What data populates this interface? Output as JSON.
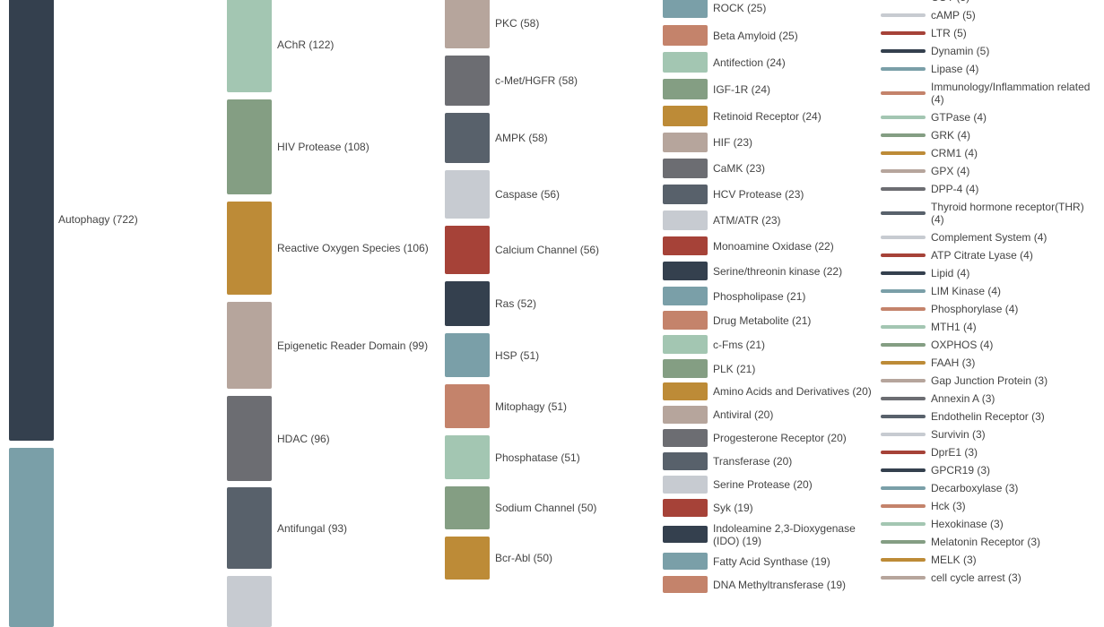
{
  "palette": [
    "#34404e",
    "#7a9fa8",
    "#c4836b",
    "#a3c6b2",
    "#849e83",
    "#bd8b37",
    "#b6a59c",
    "#6c6d72",
    "#58616b",
    "#c7cbd1",
    "#a64238"
  ],
  "chart_data": {
    "type": "bar",
    "title": "",
    "columns": [
      {
        "kind": "bars",
        "items": [
          {
            "label": "Autophagy",
            "value": 722,
            "color": "#34404e"
          },
          {
            "label": "",
            "value": null,
            "color": "#7a9fa8"
          }
        ]
      },
      {
        "kind": "bars",
        "items": [
          {
            "label": "AChR",
            "value": 122,
            "color": "#a3c6b2"
          },
          {
            "label": "HIV Protease",
            "value": 108,
            "color": "#849e83"
          },
          {
            "label": "Reactive Oxygen Species",
            "value": 106,
            "color": "#bd8b37"
          },
          {
            "label": "Epigenetic Reader Domain",
            "value": 99,
            "color": "#b6a59c"
          },
          {
            "label": "HDAC",
            "value": 96,
            "color": "#6c6d72"
          },
          {
            "label": "Antifungal",
            "value": 93,
            "color": "#58616b"
          },
          {
            "label": "",
            "value": null,
            "color": "#c7cbd1"
          }
        ]
      },
      {
        "kind": "bars",
        "items": [
          {
            "label": "PKC",
            "value": 58,
            "color": "#b6a59c"
          },
          {
            "label": "c-Met/HGFR",
            "value": 58,
            "color": "#6c6d72"
          },
          {
            "label": "AMPK",
            "value": 58,
            "color": "#58616b"
          },
          {
            "label": "Caspase",
            "value": 56,
            "color": "#c7cbd1"
          },
          {
            "label": "Calcium Channel",
            "value": 56,
            "color": "#a64238"
          },
          {
            "label": "Ras",
            "value": 52,
            "color": "#34404e"
          },
          {
            "label": "HSP",
            "value": 51,
            "color": "#7a9fa8"
          },
          {
            "label": "Mitophagy",
            "value": 51,
            "color": "#c4836b"
          },
          {
            "label": "Phosphatase",
            "value": 51,
            "color": "#a3c6b2"
          },
          {
            "label": "Sodium Channel",
            "value": 50,
            "color": "#849e83"
          },
          {
            "label": "Bcr-Abl",
            "value": 50,
            "color": "#bd8b37"
          }
        ]
      },
      {
        "kind": "bars",
        "items": [
          {
            "label": "ROCK",
            "value": 25,
            "color": "#7a9fa8"
          },
          {
            "label": "Beta Amyloid",
            "value": 25,
            "color": "#c4836b"
          },
          {
            "label": "Antifection",
            "value": 24,
            "color": "#a3c6b2"
          },
          {
            "label": "IGF-1R",
            "value": 24,
            "color": "#849e83"
          },
          {
            "label": "Retinoid Receptor",
            "value": 24,
            "color": "#bd8b37"
          },
          {
            "label": "HIF",
            "value": 23,
            "color": "#b6a59c"
          },
          {
            "label": "CaMK",
            "value": 23,
            "color": "#6c6d72"
          },
          {
            "label": "HCV Protease",
            "value": 23,
            "color": "#58616b"
          },
          {
            "label": "ATM/ATR",
            "value": 23,
            "color": "#c7cbd1"
          },
          {
            "label": "Monoamine Oxidase",
            "value": 22,
            "color": "#a64238"
          },
          {
            "label": "Serine/threonin kinase",
            "value": 22,
            "color": "#34404e"
          },
          {
            "label": "Phospholipase",
            "value": 21,
            "color": "#7a9fa8"
          },
          {
            "label": "Drug Metabolite",
            "value": 21,
            "color": "#c4836b"
          },
          {
            "label": "c-Fms",
            "value": 21,
            "color": "#a3c6b2"
          },
          {
            "label": "PLK",
            "value": 21,
            "color": "#849e83"
          },
          {
            "label": "Amino Acids and Derivatives",
            "value": 20,
            "color": "#bd8b37"
          },
          {
            "label": "Antiviral",
            "value": 20,
            "color": "#b6a59c"
          },
          {
            "label": "Progesterone Receptor",
            "value": 20,
            "color": "#6c6d72"
          },
          {
            "label": "Transferase",
            "value": 20,
            "color": "#58616b"
          },
          {
            "label": "Serine Protease",
            "value": 20,
            "color": "#c7cbd1"
          },
          {
            "label": "Syk",
            "value": 19,
            "color": "#a64238"
          },
          {
            "label": "Indoleamine 2,3-Dioxygenase (IDO)",
            "value": 19,
            "color": "#34404e"
          },
          {
            "label": "Fatty Acid Synthase",
            "value": 19,
            "color": "#7a9fa8"
          },
          {
            "label": "DNA Methyltransferase",
            "value": 19,
            "color": "#c4836b"
          }
        ]
      },
      {
        "kind": "lines",
        "items": [
          {
            "label": "COT",
            "value": 5,
            "color": "#34404e"
          },
          {
            "label": "cAMP",
            "value": 5,
            "color": "#c7cbd1"
          },
          {
            "label": "LTR",
            "value": 5,
            "color": "#a64238"
          },
          {
            "label": "Dynamin",
            "value": 5,
            "color": "#34404e"
          },
          {
            "label": "Lipase",
            "value": 4,
            "color": "#7a9fa8"
          },
          {
            "label": "Immunology/Inflammation related",
            "value": 4,
            "color": "#c4836b"
          },
          {
            "label": "GTPase",
            "value": 4,
            "color": "#a3c6b2"
          },
          {
            "label": "GRK",
            "value": 4,
            "color": "#849e83"
          },
          {
            "label": "CRM1",
            "value": 4,
            "color": "#bd8b37"
          },
          {
            "label": "GPX",
            "value": 4,
            "color": "#b6a59c"
          },
          {
            "label": "DPP-4",
            "value": 4,
            "color": "#6c6d72"
          },
          {
            "label": "Thyroid hormone receptor(THR)",
            "value": 4,
            "color": "#58616b"
          },
          {
            "label": "Complement System",
            "value": 4,
            "color": "#c7cbd1"
          },
          {
            "label": "ATP Citrate Lyase",
            "value": 4,
            "color": "#a64238"
          },
          {
            "label": "Lipid",
            "value": 4,
            "color": "#34404e"
          },
          {
            "label": "LIM Kinase",
            "value": 4,
            "color": "#7a9fa8"
          },
          {
            "label": "Phosphorylase",
            "value": 4,
            "color": "#c4836b"
          },
          {
            "label": "MTH1",
            "value": 4,
            "color": "#a3c6b2"
          },
          {
            "label": "OXPHOS",
            "value": 4,
            "color": "#849e83"
          },
          {
            "label": "FAAH",
            "value": 3,
            "color": "#bd8b37"
          },
          {
            "label": "Gap Junction Protein",
            "value": 3,
            "color": "#b6a59c"
          },
          {
            "label": "Annexin A",
            "value": 3,
            "color": "#6c6d72"
          },
          {
            "label": "Endothelin Receptor",
            "value": 3,
            "color": "#58616b"
          },
          {
            "label": "Survivin",
            "value": 3,
            "color": "#c7cbd1"
          },
          {
            "label": "DprE1",
            "value": 3,
            "color": "#a64238"
          },
          {
            "label": "GPCR19",
            "value": 3,
            "color": "#34404e"
          },
          {
            "label": "Decarboxylase",
            "value": 3,
            "color": "#7a9fa8"
          },
          {
            "label": "Hck",
            "value": 3,
            "color": "#c4836b"
          },
          {
            "label": "Hexokinase",
            "value": 3,
            "color": "#a3c6b2"
          },
          {
            "label": "Melatonin Receptor",
            "value": 3,
            "color": "#849e83"
          },
          {
            "label": "MELK",
            "value": 3,
            "color": "#bd8b37"
          },
          {
            "label": "cell cycle arrest",
            "value": 3,
            "color": "#b6a59c"
          }
        ]
      }
    ]
  }
}
